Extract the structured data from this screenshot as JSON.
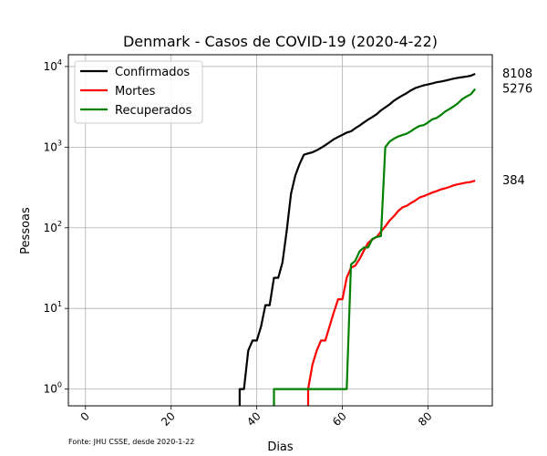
{
  "chart_data": {
    "type": "line",
    "title": "Denmark - Casos de COVID-19 (2020-4-22)",
    "xlabel": "Dias",
    "ylabel": "Pessoas",
    "yscale": "log",
    "xlim": [
      -4,
      95
    ],
    "ylim": [
      0.62,
      14000
    ],
    "x_ticks": [
      0,
      20,
      40,
      60,
      80
    ],
    "y_ticks": [
      {
        "value": 1,
        "base": "10",
        "exp": "0"
      },
      {
        "value": 10,
        "base": "10",
        "exp": "1"
      },
      {
        "value": 100,
        "base": "10",
        "exp": "2"
      },
      {
        "value": 1000,
        "base": "10",
        "exp": "3"
      },
      {
        "value": 10000,
        "base": "10",
        "exp": "4"
      }
    ],
    "grid": true,
    "legend_position": "top-left",
    "footnote": "Fonte: JHU CSSE, desde 2020-1-22",
    "series": [
      {
        "name": "Confirmados",
        "color": "#000000",
        "final_label": "8108",
        "points": [
          [
            36,
            0.62
          ],
          [
            36,
            1
          ],
          [
            37,
            1
          ],
          [
            38,
            3
          ],
          [
            39,
            4
          ],
          [
            40,
            4
          ],
          [
            41,
            6
          ],
          [
            42,
            11
          ],
          [
            43,
            11
          ],
          [
            44,
            24
          ],
          [
            45,
            24
          ],
          [
            46,
            37
          ],
          [
            47,
            92
          ],
          [
            48,
            264
          ],
          [
            49,
            444
          ],
          [
            50,
            617
          ],
          [
            51,
            804
          ],
          [
            52,
            836
          ],
          [
            53,
            864
          ],
          [
            54,
            914
          ],
          [
            55,
            977
          ],
          [
            56,
            1057
          ],
          [
            57,
            1151
          ],
          [
            58,
            1255
          ],
          [
            59,
            1337
          ],
          [
            60,
            1420
          ],
          [
            61,
            1514
          ],
          [
            62,
            1572
          ],
          [
            63,
            1718
          ],
          [
            64,
            1851
          ],
          [
            65,
            2023
          ],
          [
            66,
            2201
          ],
          [
            67,
            2366
          ],
          [
            68,
            2564
          ],
          [
            69,
            2860
          ],
          [
            70,
            3107
          ],
          [
            71,
            3386
          ],
          [
            72,
            3757
          ],
          [
            73,
            4077
          ],
          [
            74,
            4369
          ],
          [
            75,
            4681
          ],
          [
            76,
            5071
          ],
          [
            77,
            5402
          ],
          [
            78,
            5635
          ],
          [
            79,
            5830
          ],
          [
            80,
            5996
          ],
          [
            81,
            6174
          ],
          [
            82,
            6369
          ],
          [
            83,
            6511
          ],
          [
            84,
            6681
          ],
          [
            85,
            6870
          ],
          [
            86,
            7073
          ],
          [
            87,
            7242
          ],
          [
            88,
            7384
          ],
          [
            89,
            7515
          ],
          [
            90,
            7695
          ],
          [
            91,
            8108
          ]
        ]
      },
      {
        "name": "Mortes",
        "color": "#ff0000",
        "final_label": "384",
        "points": [
          [
            52,
            0.62
          ],
          [
            52,
            1
          ],
          [
            53,
            2
          ],
          [
            54,
            3
          ],
          [
            55,
            4
          ],
          [
            56,
            4
          ],
          [
            57,
            6
          ],
          [
            58,
            9
          ],
          [
            59,
            13
          ],
          [
            60,
            13
          ],
          [
            61,
            24
          ],
          [
            62,
            32
          ],
          [
            63,
            34
          ],
          [
            64,
            41
          ],
          [
            65,
            52
          ],
          [
            66,
            65
          ],
          [
            67,
            72
          ],
          [
            68,
            77
          ],
          [
            69,
            90
          ],
          [
            70,
            104
          ],
          [
            71,
            123
          ],
          [
            72,
            139
          ],
          [
            73,
            161
          ],
          [
            74,
            179
          ],
          [
            75,
            187
          ],
          [
            76,
            203
          ],
          [
            77,
            218
          ],
          [
            78,
            237
          ],
          [
            79,
            247
          ],
          [
            80,
            260
          ],
          [
            81,
            273
          ],
          [
            82,
            285
          ],
          [
            83,
            299
          ],
          [
            84,
            309
          ],
          [
            85,
            321
          ],
          [
            86,
            336
          ],
          [
            87,
            346
          ],
          [
            88,
            355
          ],
          [
            89,
            364
          ],
          [
            90,
            370
          ],
          [
            91,
            384
          ]
        ]
      },
      {
        "name": "Recuperados",
        "color": "#008000",
        "final_label": "5276",
        "points": [
          [
            44,
            0.62
          ],
          [
            44,
            1
          ],
          [
            61,
            1
          ],
          [
            62,
            35
          ],
          [
            63,
            39
          ],
          [
            64,
            51
          ],
          [
            65,
            57
          ],
          [
            66,
            57
          ],
          [
            67,
            73
          ],
          [
            68,
            77
          ],
          [
            69,
            79
          ],
          [
            70,
            1000
          ],
          [
            71,
            1172
          ],
          [
            72,
            1271
          ],
          [
            73,
            1355
          ],
          [
            74,
            1411
          ],
          [
            75,
            1470
          ],
          [
            76,
            1580
          ],
          [
            77,
            1718
          ],
          [
            78,
            1833
          ],
          [
            79,
            1877
          ],
          [
            80,
            2020
          ],
          [
            81,
            2216
          ],
          [
            82,
            2304
          ],
          [
            83,
            2500
          ],
          [
            84,
            2763
          ],
          [
            85,
            2966
          ],
          [
            86,
            3207
          ],
          [
            87,
            3516
          ],
          [
            88,
            3944
          ],
          [
            89,
            4244
          ],
          [
            90,
            4538
          ],
          [
            91,
            5276
          ]
        ]
      }
    ]
  }
}
